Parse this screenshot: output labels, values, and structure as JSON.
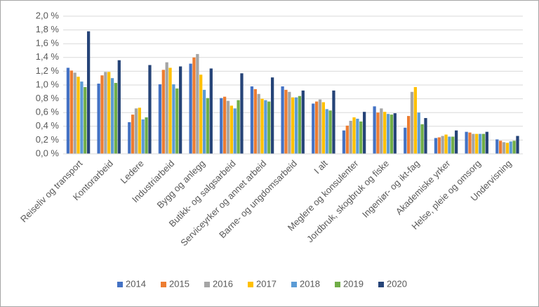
{
  "chart_data": {
    "type": "bar",
    "categories": [
      "Reiseliv og transport",
      "Kontorarbeid",
      "Ledere",
      "Industriarbeid",
      "Bygg og anlegg",
      "Butikk- og salgsarbeid",
      "Serviceyrker og annet arbeid",
      "Barne- og ungdomsarbeid",
      "I alt",
      "Meglere og konsulenter",
      "Jordbruk, skogbruk og fiske",
      "Ingeniør- og ikt-fag",
      "Akademiske yrker",
      "Helse, pleie og omsorg",
      "Undervisning"
    ],
    "series": [
      {
        "name": "2014",
        "color": "#4472c4",
        "values": [
          1.25,
          1.02,
          0.46,
          1.01,
          1.31,
          0.81,
          0.98,
          0.98,
          0.73,
          0.34,
          0.69,
          0.38,
          0.23,
          0.32,
          0.21
        ]
      },
      {
        "name": "2015",
        "color": "#ed7d31",
        "values": [
          1.21,
          1.14,
          0.57,
          1.22,
          1.4,
          0.83,
          0.94,
          0.93,
          0.76,
          0.41,
          0.6,
          0.55,
          0.24,
          0.31,
          0.19
        ]
      },
      {
        "name": "2016",
        "color": "#a5a5a5",
        "values": [
          1.18,
          1.19,
          0.66,
          1.33,
          1.45,
          0.77,
          0.87,
          0.9,
          0.79,
          0.48,
          0.66,
          0.9,
          0.26,
          0.29,
          0.17
        ]
      },
      {
        "name": "2017",
        "color": "#ffc000",
        "values": [
          1.12,
          1.19,
          0.67,
          1.25,
          1.15,
          0.7,
          0.8,
          0.82,
          0.75,
          0.53,
          0.61,
          0.97,
          0.28,
          0.29,
          0.16
        ]
      },
      {
        "name": "2018",
        "color": "#5b9bd5",
        "values": [
          1.05,
          1.1,
          0.5,
          1.01,
          0.93,
          0.66,
          0.78,
          0.82,
          0.65,
          0.51,
          0.58,
          0.6,
          0.25,
          0.29,
          0.18
        ]
      },
      {
        "name": "2019",
        "color": "#70ad47",
        "values": [
          0.97,
          1.03,
          0.53,
          0.95,
          0.81,
          0.78,
          0.76,
          0.84,
          0.63,
          0.47,
          0.57,
          0.43,
          0.25,
          0.29,
          0.19
        ]
      },
      {
        "name": "2020",
        "color": "#264478",
        "values": [
          1.78,
          1.36,
          1.29,
          1.27,
          1.24,
          1.17,
          1.11,
          0.92,
          0.92,
          0.61,
          0.59,
          0.52,
          0.34,
          0.32,
          0.26
        ]
      }
    ],
    "ylim": [
      0,
      2
    ],
    "yticks": [
      {
        "value": 0,
        "label": "0,0 %"
      },
      {
        "value": 0.2,
        "label": "0,2 %"
      },
      {
        "value": 0.4,
        "label": "0,4 %"
      },
      {
        "value": 0.6,
        "label": "0,6 %"
      },
      {
        "value": 0.8,
        "label": "0,8 %"
      },
      {
        "value": 1.0,
        "label": "1,0 %"
      },
      {
        "value": 1.2,
        "label": "1,2 %"
      },
      {
        "value": 1.4,
        "label": "1,4 %"
      },
      {
        "value": 1.6,
        "label": "1,6 %"
      },
      {
        "value": 1.8,
        "label": "1,8 %"
      },
      {
        "value": 2.0,
        "label": "2,0 %"
      }
    ],
    "grid": true,
    "legend": "bottom"
  }
}
